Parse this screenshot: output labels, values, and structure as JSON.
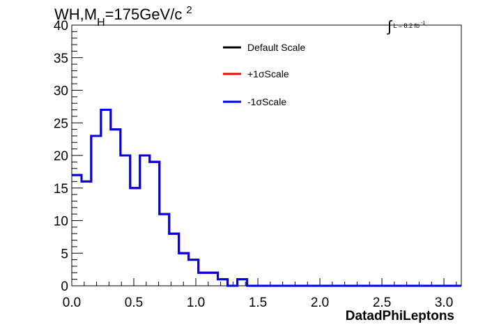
{
  "header": {
    "title_main": "WH,M",
    "title_sub": "H",
    "title_rest": "=175GeV/c",
    "title_sup": "2",
    "lumi_integral": "∫",
    "lumi_text": "L = 8.2 fb",
    "lumi_sup": "-1"
  },
  "chart_data": {
    "type": "line",
    "xlabel": "DatadPhiLeptons",
    "ylabel": "",
    "xlim": [
      0,
      3.14
    ],
    "ylim": [
      0,
      40
    ],
    "bin_width": 0.0785,
    "x_ticks": [
      0,
      0.5,
      1.0,
      1.5,
      2.0,
      2.5,
      3.0
    ],
    "x_tick_labels": [
      "0.0",
      "0.5",
      "1.0",
      "1.5",
      "2.0",
      "2.5",
      "3.0"
    ],
    "y_ticks": [
      0,
      5,
      10,
      15,
      20,
      25,
      30,
      35,
      40
    ],
    "y_tick_labels": [
      "0",
      "5",
      "10",
      "15",
      "20",
      "25",
      "30",
      "35",
      "40"
    ],
    "grid": false,
    "legend_position": "top-center",
    "series": [
      {
        "name": "Default Scale",
        "color": "#000000",
        "values": [
          17,
          16,
          23,
          27,
          24,
          20,
          15,
          20,
          19,
          11,
          8,
          5,
          4,
          2,
          2,
          1,
          0,
          1,
          0,
          0,
          0,
          0,
          0,
          0,
          0,
          0,
          0,
          0,
          0,
          0,
          0,
          0,
          0,
          0,
          0,
          0,
          0,
          0,
          0,
          0
        ]
      },
      {
        "name": "+1σScale",
        "color": "#ff0000",
        "values": [
          17,
          16,
          23,
          27,
          24,
          20,
          15,
          20,
          19,
          11,
          8,
          5,
          4,
          2,
          2,
          1,
          0,
          1,
          0,
          0,
          0,
          0,
          0,
          0,
          0,
          0,
          0,
          0,
          0,
          0,
          0,
          0,
          0,
          0,
          0,
          0,
          0,
          0,
          0,
          0
        ]
      },
      {
        "name": "-1σScale",
        "color": "#0000ee",
        "values": [
          17,
          16,
          23,
          27,
          24,
          20,
          15,
          20,
          19,
          11,
          8,
          5,
          4,
          2,
          2,
          1,
          0,
          1,
          0,
          0,
          0,
          0,
          0,
          0,
          0,
          0,
          0,
          0,
          0,
          0,
          0,
          0,
          0,
          0,
          0,
          0,
          0,
          0,
          0,
          0
        ]
      }
    ]
  }
}
